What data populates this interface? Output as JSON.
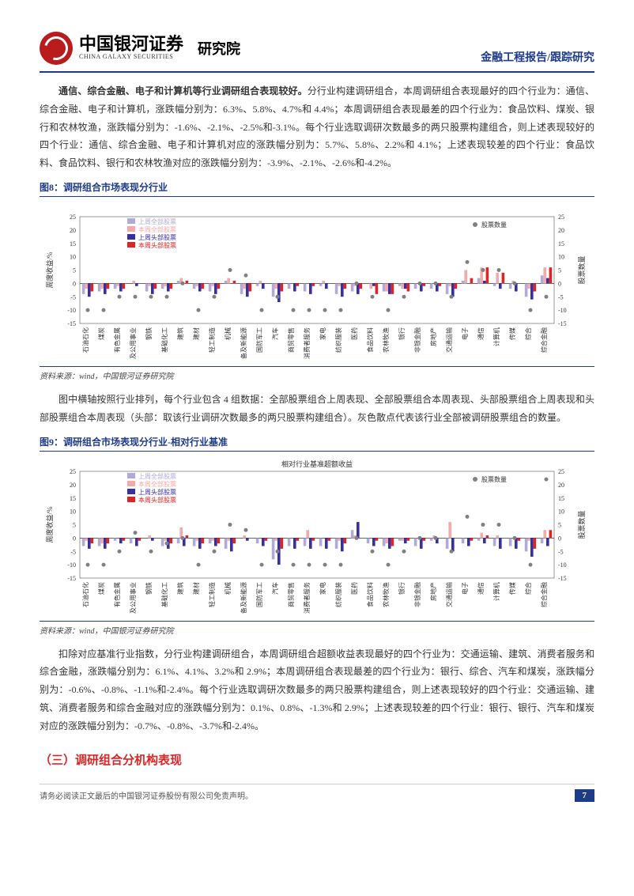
{
  "header": {
    "company_cn": "中国银河证券",
    "company_en": "CHINA GALAXY SECURITIES",
    "division": "研究院",
    "report_type": "金融工程报告/跟踪研究"
  },
  "para1": {
    "lead": "通信、综合金融、电子和计算机等行业调研组合表现较好。",
    "body": "分行业构建调研组合，本周调研组合表现最好的四个行业为：通信、综合金融、电子和计算机，涨跌幅分别为：6.3%、5.8%、4.7%和 4.4%；本周调研组合表现最差的四个行业为：食品饮料、煤炭、银行和农林牧渔，涨跌幅分别为：-1.6%、-2.1%、-2.5%和-3.1%。每个行业选取调研次数最多的两只股票构建组合，则上述表现较好的四个行业：通信、综合金融、电子和计算机对应的涨跌幅分别为：5.7%、5.8%、2.2%和 4.1%；上述表现较差的四个行业：食品饮料、食品饮料、银行和农林牧渔对应的涨跌幅分别为：-3.9%、-2.1%、-2.6%和-4.2%。"
  },
  "figure8": {
    "title": "图8：调研组合市场表现分行业",
    "source": "资料来源：wind，中国银河证券研究院",
    "ylabel": "周度收益/%",
    "ylabel_right": "股票数量",
    "ylim": [
      -15,
      25
    ],
    "ytick_step": 5,
    "ylim_right": [
      -15,
      25
    ],
    "legend": [
      "上周全部股票",
      "本周全部股票",
      "上周头部股票",
      "本周头部股票",
      "股票数量"
    ],
    "legend_colors": [
      "#b0aad6",
      "#f5a9a9",
      "#3730a3",
      "#dc2626",
      "#808080"
    ],
    "categories": [
      "石油石化",
      "煤炭",
      "有色金属",
      "电力及公用事业",
      "钢铁",
      "基础化工",
      "建筑",
      "建材",
      "轻工制造",
      "机械",
      "电力设备及新能源",
      "国防军工",
      "汽车",
      "商贸零售",
      "消费者服务",
      "家电",
      "纺织服装",
      "医药",
      "食品饮料",
      "农林牧渔",
      "银行",
      "非银金融",
      "房地产",
      "交通运输",
      "电子",
      "通信",
      "计算机",
      "传媒",
      "综合",
      "综合金融"
    ],
    "series_all_last": [
      -4,
      -3,
      -2,
      0,
      -3,
      -2,
      1,
      -2,
      -3,
      1,
      -4,
      -1,
      -5,
      -2,
      -3,
      -1,
      -4,
      -3,
      0,
      -3,
      -1,
      -2,
      -2,
      -4,
      1,
      2,
      -1,
      -2,
      -5,
      3
    ],
    "series_all_this": [
      -2,
      -2,
      -1,
      1,
      -1,
      -1,
      2,
      -1,
      -1,
      2,
      -2,
      1,
      -2,
      0,
      0,
      1,
      -1,
      -1,
      -2,
      -3,
      -2,
      0,
      0,
      -1,
      5,
      6,
      4,
      1,
      -2,
      6
    ],
    "series_head_last": [
      -5,
      -4,
      -3,
      -1,
      -4,
      -3,
      0,
      -3,
      -4,
      0,
      -5,
      -2,
      -7,
      -3,
      -4,
      -2,
      -5,
      -4,
      -1,
      -4,
      -2,
      -3,
      -3,
      -5,
      0,
      1,
      -2,
      -3,
      -6,
      2
    ],
    "series_head_this": [
      -3,
      -2,
      -2,
      0,
      -2,
      -2,
      1,
      -2,
      -2,
      1,
      -3,
      0,
      -3,
      -1,
      -1,
      0,
      -2,
      -2,
      -4,
      -4,
      -3,
      -1,
      -1,
      -2,
      2,
      6,
      4,
      0,
      -3,
      6
    ],
    "stock_count": [
      -10,
      -10,
      -5,
      -5,
      -5,
      -5,
      0,
      -10,
      -5,
      5,
      3,
      -10,
      -5,
      -10,
      -10,
      -10,
      -10,
      0,
      -5,
      -10,
      -5,
      0,
      0,
      -5,
      8,
      5,
      5,
      0,
      -10,
      -5
    ],
    "bar_width": 0.18,
    "background_color": "#ffffff",
    "axis_color": "#333333",
    "font_size": 8
  },
  "para2": "图中横轴按照行业排列，每个行业包含 4 组数据：全部股票组合上周表现、全部股票组合本周表现、头部股票组合上周表现和头部股票组合本周表现（头部：取该行业调研次数最多的两只股票构建组合）。灰色散点代表该行业全部被调研股票组合的数量。",
  "figure9": {
    "title": "图9：调研组合市场表现分行业-相对行业基准",
    "subtitle": "相对行业基准超额收益",
    "source": "资料来源：wind，中国银河证券研究院",
    "ylabel": "周度收益/%",
    "ylabel_right": "股票数量",
    "ylim": [
      -15,
      25
    ],
    "ytick_step": 5,
    "legend": [
      "上周全部股票",
      "本周全部股票",
      "上周头部股票",
      "本周头部股票",
      "股票数量"
    ],
    "legend_colors": [
      "#b0aad6",
      "#f5a9a9",
      "#3730a3",
      "#dc2626",
      "#808080"
    ],
    "categories": [
      "石油石化",
      "煤炭",
      "有色金属",
      "电力及公用事业",
      "钢铁",
      "基础化工",
      "建筑",
      "建材",
      "轻工制造",
      "机械",
      "电力设备及新能源",
      "国防军工",
      "汽车",
      "商贸零售",
      "消费者服务",
      "家电",
      "纺织服装",
      "医药",
      "食品饮料",
      "农林牧渔",
      "银行",
      "非银金融",
      "房地产",
      "交通运输",
      "电子",
      "通信",
      "计算机",
      "传媒",
      "综合",
      "综合金融"
    ],
    "series_all_last": [
      -3,
      -3,
      -1,
      -2,
      0,
      -3,
      -2,
      -3,
      -2,
      -4,
      0,
      -2,
      -8,
      -3,
      -3,
      -3,
      -4,
      3,
      -2,
      -3,
      -1,
      -3,
      -1,
      -4,
      -2,
      -1,
      -3,
      -3,
      -5,
      -2
    ],
    "series_all_this": [
      -1,
      -2,
      0,
      0,
      1,
      -1,
      4,
      -1,
      -1,
      -1,
      1,
      0,
      -1,
      0,
      3,
      0,
      -1,
      1,
      0,
      -2,
      -1,
      0,
      1,
      6,
      0,
      2,
      1,
      0,
      -1,
      3
    ],
    "series_head_last": [
      -4,
      -4,
      -2,
      -3,
      -1,
      -4,
      -3,
      -4,
      -3,
      -5,
      -1,
      -3,
      -10,
      -4,
      -4,
      -4,
      -5,
      6,
      -3,
      -4,
      -2,
      -4,
      -2,
      -5,
      -3,
      -2,
      -4,
      -4,
      -7,
      -3
    ],
    "series_head_this": [
      -2,
      -2,
      -1,
      -1,
      0,
      -2,
      1,
      -2,
      -2,
      -2,
      0,
      -1,
      -4,
      -1,
      -1,
      -1,
      -2,
      0,
      -1,
      -3,
      -1,
      -1,
      0,
      0,
      -1,
      1,
      0,
      -1,
      -4,
      3
    ],
    "stock_count": [
      -10,
      -10,
      -5,
      2,
      -5,
      -2,
      0,
      -10,
      -5,
      5,
      3,
      -10,
      -5,
      -10,
      -10,
      -10,
      -10,
      0,
      -5,
      -10,
      -5,
      0,
      0,
      -5,
      8,
      5,
      5,
      0,
      -10,
      22
    ],
    "bar_width": 0.18,
    "background_color": "#ffffff",
    "axis_color": "#333333",
    "font_size": 8
  },
  "para3": "扣除对应基准行业指数，分行业构建调研组合，本周调研组合超额收益表现最好的四个行业为：交通运输、建筑、消费者服务和综合金融，涨跌幅分别为：6.1%、4.1%、3.2%和 2.9%；本周调研组合表现最差的四个行业为：银行、综合、汽车和煤炭，涨跌幅分别为：-0.6%、-0.8%、-1.1%和-2.4%。每个行业选取调研次数最多的两只股票构建组合，则上述表现较好的四个行业：交通运输、建筑、消费者服务和综合金融对应的涨跌幅分别为：0.1%、0.8%、-1.3%和 2.9%；上述表现较差的四个行业：银行、银行、汽车和煤炭对应的涨跌幅分别为：-0.7%、-0.8%、-3.7%和-2.4%。",
  "section3_title": "（三）调研组合分机构表现",
  "footer": {
    "disclaimer": "请务必阅读正文最后的中国银河证券股份有限公司免责声明。",
    "page": "7"
  }
}
